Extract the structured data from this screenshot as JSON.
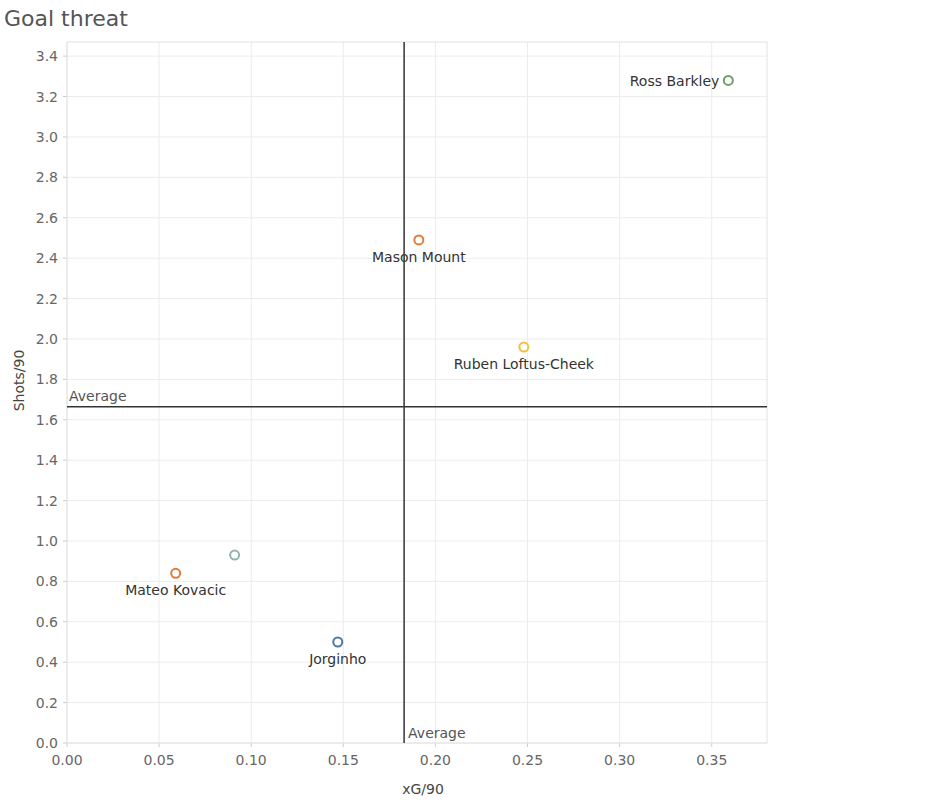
{
  "chart_data": {
    "type": "scatter",
    "title": "Goal threat",
    "x_label": "xG/90",
    "y_label": "Shots/90",
    "x": [
      0.359,
      0.191,
      0.248,
      0.091,
      0.059,
      0.147
    ],
    "values": [
      3.28,
      2.49,
      1.96,
      0.93,
      0.84,
      0.5
    ],
    "labels": [
      "Ross Barkley",
      "Mason Mount",
      "Ruben Loftus-Cheek",
      null,
      "Mateo Kovacic",
      "Jorginho"
    ],
    "colors": [
      "#6f9f68",
      "#e07b39",
      "#eec13f",
      "#8fb5ad",
      "#e07b39",
      "#4e79a7"
    ],
    "marker": "open_circle",
    "xlim": [
      0,
      0.38
    ],
    "ylim": [
      0,
      3.47
    ],
    "xticks": [
      {
        "value": 0,
        "label": "0.00"
      },
      0.05,
      {
        "value": 0.1,
        "label": "0.10"
      },
      0.15,
      {
        "value": 0.2,
        "label": "0.20"
      },
      0.25,
      {
        "value": 0.3,
        "label": "0.30"
      },
      0.35
    ],
    "yticks": [
      {
        "value": 0,
        "label": "0.0"
      },
      0.2,
      0.4,
      0.6,
      0.8,
      {
        "value": 1,
        "label": "1.0"
      },
      1.2,
      1.4,
      1.6,
      1.8,
      {
        "value": 2,
        "label": "2.0"
      },
      2.2,
      2.4,
      2.6,
      2.8,
      {
        "value": 3,
        "label": "3.0"
      },
      3.2,
      3.4
    ],
    "grid": true,
    "reference_lines": [
      {
        "axis": "y",
        "value": 1.665,
        "label": "Average"
      },
      {
        "axis": "x",
        "value": 0.183,
        "label": "Average"
      }
    ]
  }
}
